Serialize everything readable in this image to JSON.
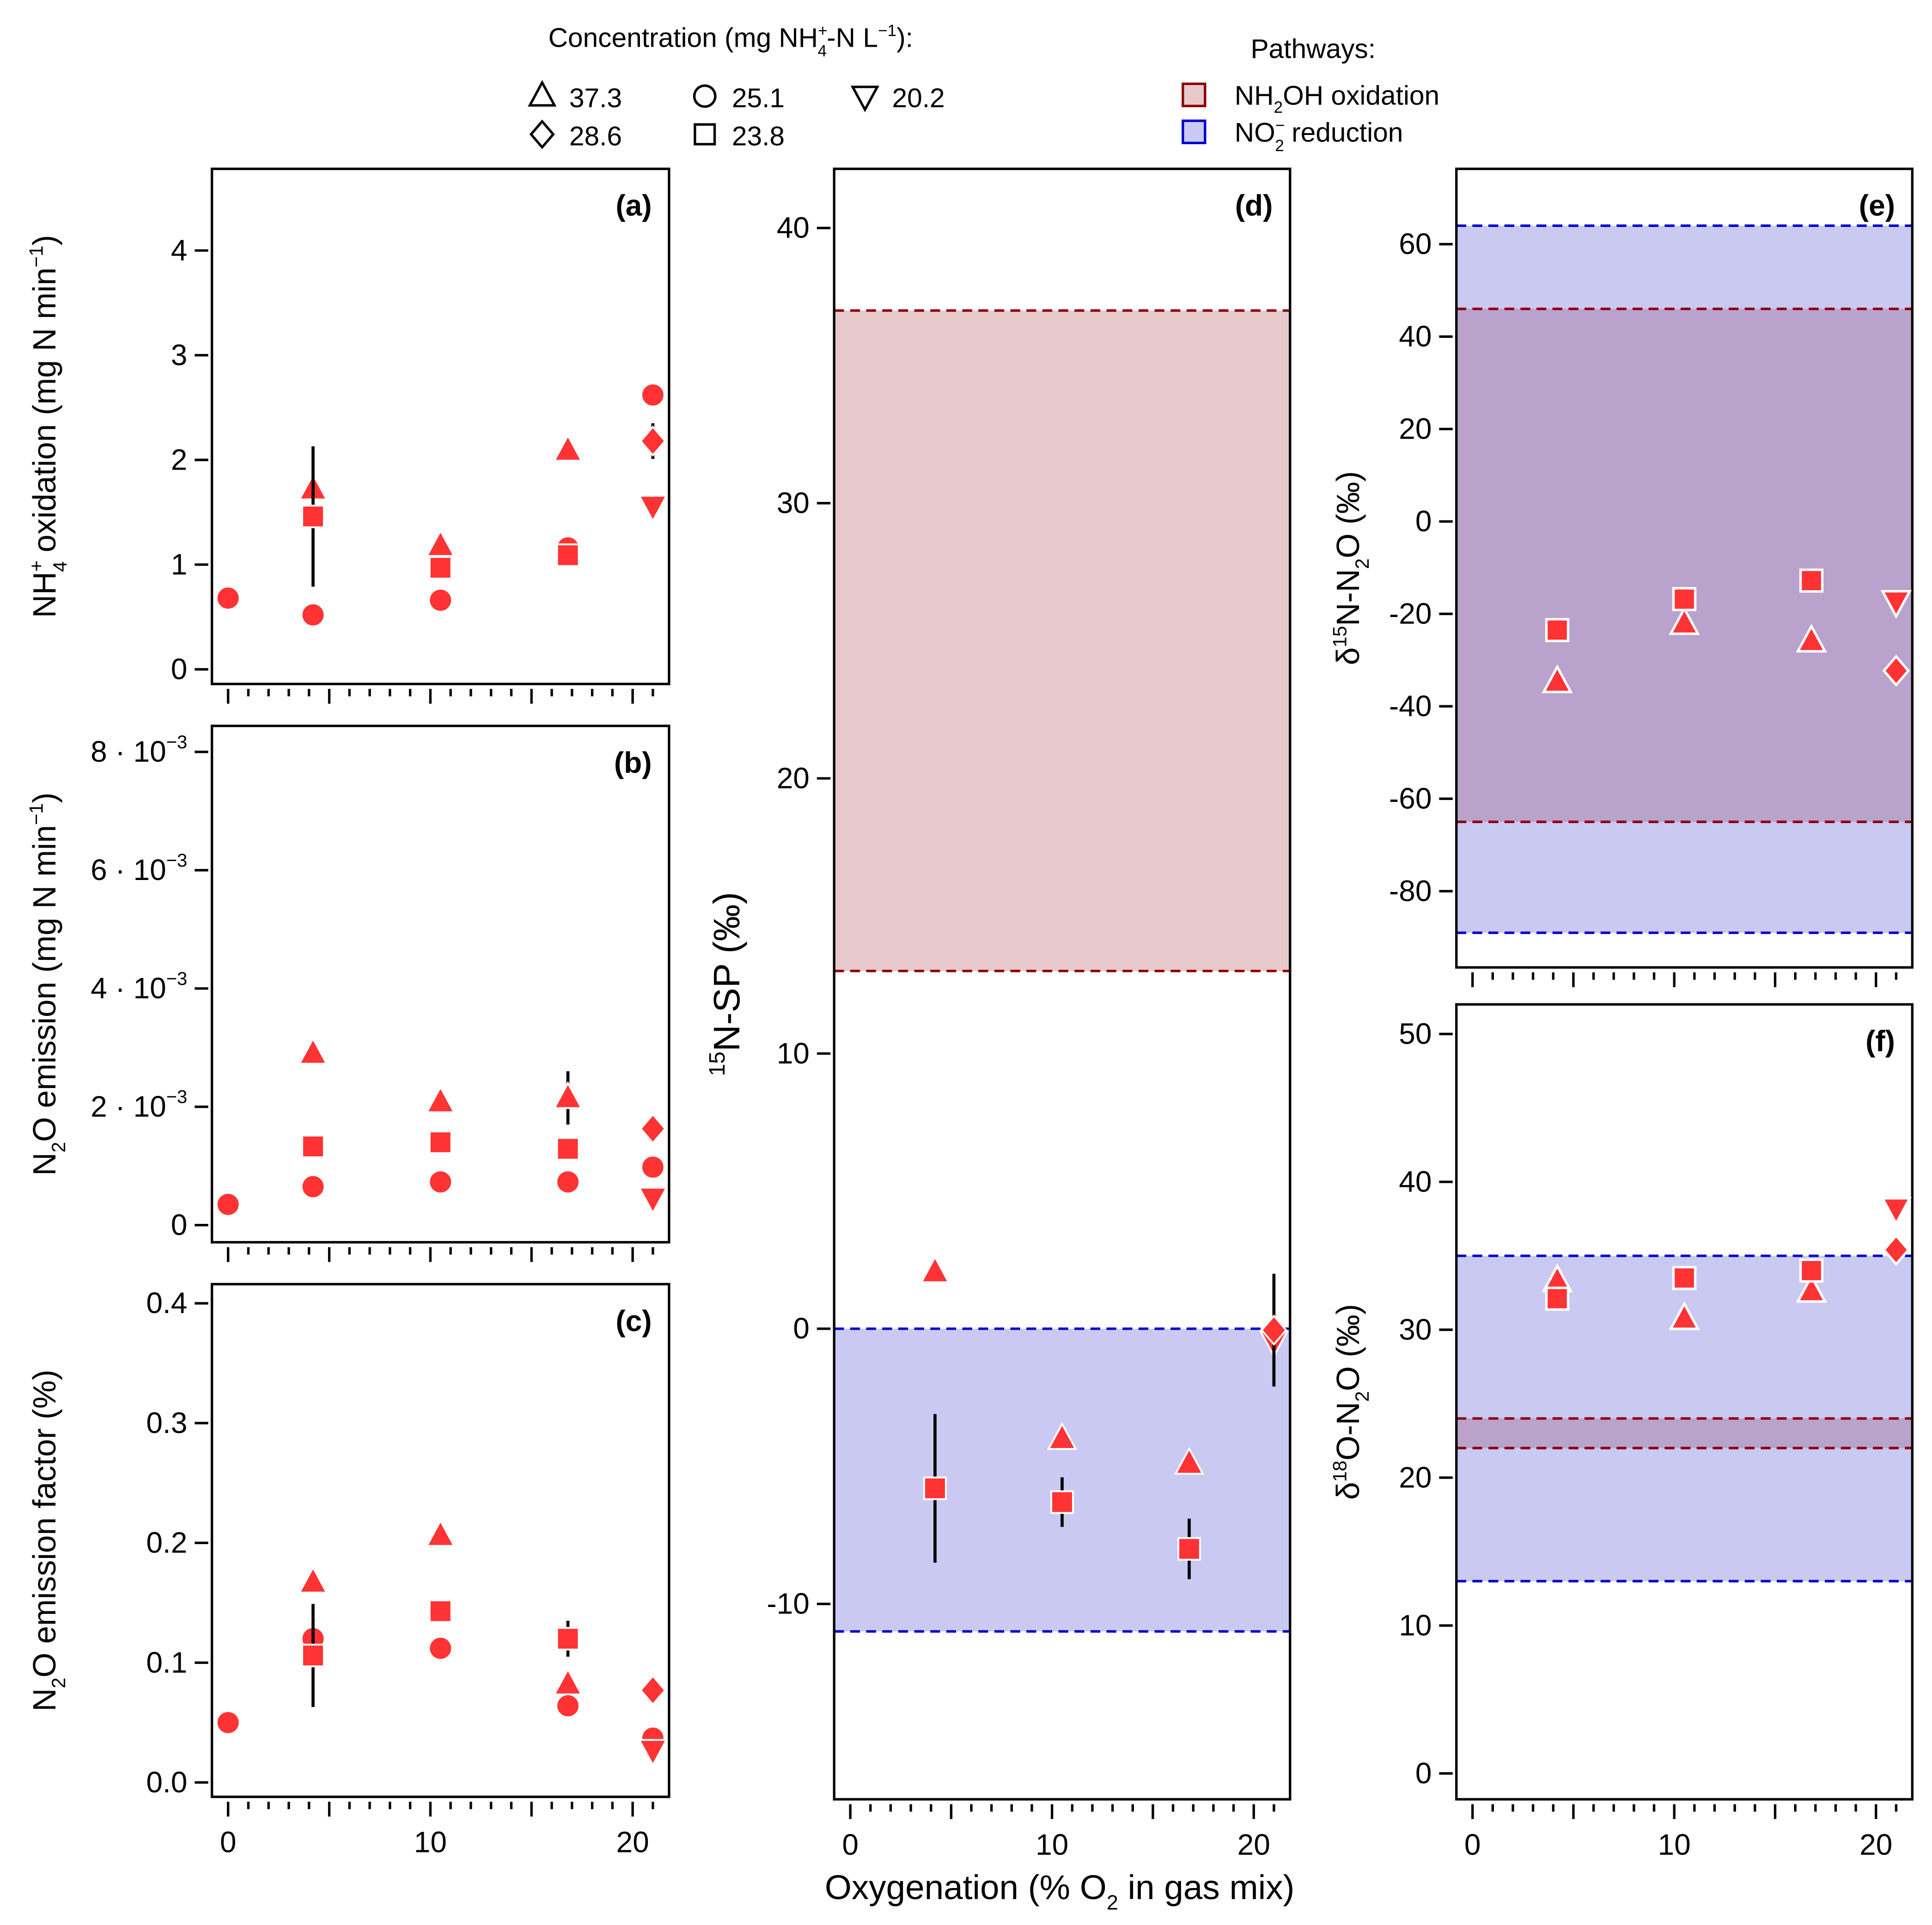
{
  "legend": {
    "concentration_title": [
      {
        "t": "Concentration (mg NH"
      },
      {
        "sub": "4",
        "sup": "+"
      },
      {
        "t": "-N L"
      },
      {
        "sup": "−1"
      },
      {
        "t": "):"
      }
    ],
    "concentration_items": [
      {
        "marker": "triangle",
        "label": "37.3"
      },
      {
        "marker": "circle",
        "label": "25.1"
      },
      {
        "marker": "triangle-down",
        "label": "20.2"
      },
      {
        "marker": "diamond",
        "label": "28.6"
      },
      {
        "marker": "square",
        "label": "23.8"
      }
    ],
    "pathways_title": "Pathways:",
    "pathway_items": [
      {
        "key": "nh2oh",
        "label": [
          {
            "t": "NH"
          },
          {
            "sub": "2"
          },
          {
            "t": "OH oxidation"
          }
        ],
        "fill": "#e8c9cb",
        "stroke": "#8b0000"
      },
      {
        "key": "no2",
        "label": [
          {
            "t": "NO"
          },
          {
            "sub": "2",
            "sup": "−"
          },
          {
            "t": " reduction"
          }
        ],
        "fill": "#c9c9f2",
        "stroke": "#0000cc"
      }
    ]
  },
  "colors": {
    "marker": "#ff3333",
    "overlap": "#b9a3cc"
  },
  "chart_data": {
    "type": "scatter",
    "xlabel": [
      {
        "t": "Oxygenation (% O"
      },
      {
        "sub": "2"
      },
      {
        "t": " in gas mix)"
      }
    ],
    "xlim": [
      -0.8,
      21.8
    ],
    "xticks": [
      0,
      10,
      20
    ],
    "series_keys": [
      "37.3",
      "25.1",
      "20.2",
      "28.6",
      "23.8"
    ],
    "panels": [
      {
        "id": "a",
        "label": "(a)",
        "xticklabels": false,
        "ylabel": [
          {
            "t": "NH"
          },
          {
            "sub": "4",
            "sup": "+"
          },
          {
            "t": " oxidation (mg N min"
          },
          {
            "sup": "−1"
          },
          {
            "t": ")"
          }
        ],
        "ylim": [
          -0.14,
          4.78
        ],
        "yticks": [
          {
            "v": 0,
            "t": "0"
          },
          {
            "v": 1,
            "t": "1"
          },
          {
            "v": 2,
            "t": "2"
          },
          {
            "v": 3,
            "t": "3"
          },
          {
            "v": 4,
            "t": "4"
          }
        ],
        "bands": [],
        "points": {
          "37.3": [
            [
              4.2,
              1.72
            ],
            [
              10.5,
              1.18
            ],
            [
              16.8,
              2.09
            ]
          ],
          "25.1": [
            [
              0,
              0.68
            ],
            [
              4.2,
              0.52
            ],
            [
              10.5,
              0.66
            ],
            [
              16.8,
              1.16
            ],
            [
              21,
              2.62
            ]
          ],
          "20.2": [
            [
              21,
              1.56
            ]
          ],
          "28.6": [
            [
              21,
              2.18,
              0.17
            ]
          ],
          "23.8": [
            [
              4.2,
              1.46,
              0.67
            ],
            [
              10.5,
              0.97
            ],
            [
              16.8,
              1.09
            ]
          ]
        }
      },
      {
        "id": "b",
        "label": "(b)",
        "xticklabels": false,
        "ylabel": [
          {
            "t": "N"
          },
          {
            "sub": "2"
          },
          {
            "t": "O emission (mg N min"
          },
          {
            "sup": "−1"
          },
          {
            "t": ")"
          }
        ],
        "ylim": [
          -0.00029,
          0.00844
        ],
        "yticks": [
          {
            "v": 0,
            "t": "0"
          },
          {
            "v": 0.002,
            "t": "2 · 10",
            "e": "−3"
          },
          {
            "v": 0.004,
            "t": "4 · 10",
            "e": "−3"
          },
          {
            "v": 0.006,
            "t": "6 · 10",
            "e": "−3"
          },
          {
            "v": 0.008,
            "t": "8 · 10",
            "e": "−3"
          }
        ],
        "bands": [],
        "points": {
          "37.3": [
            [
              4.2,
              0.0029
            ],
            [
              10.5,
              0.00208
            ],
            [
              16.8,
              0.00215,
              0.00045
            ]
          ],
          "25.1": [
            [
              0,
              0.00035
            ],
            [
              4.2,
              0.00065
            ],
            [
              10.5,
              0.00073
            ],
            [
              16.8,
              0.00073
            ],
            [
              21,
              0.00098
            ]
          ],
          "20.2": [
            [
              21,
              0.00046
            ]
          ],
          "28.6": [
            [
              21,
              0.00163
            ]
          ],
          "23.8": [
            [
              4.2,
              0.00133
            ],
            [
              10.5,
              0.0014
            ],
            [
              16.8,
              0.00129
            ]
          ]
        }
      },
      {
        "id": "c",
        "label": "(c)",
        "xticklabels": true,
        "ylabel": [
          {
            "t": "N"
          },
          {
            "sub": "2"
          },
          {
            "t": "O emission factor (%)"
          }
        ],
        "ylim": [
          -0.012,
          0.416
        ],
        "yticks": [
          {
            "v": 0,
            "t": "0.0"
          },
          {
            "v": 0.1,
            "t": "0.1"
          },
          {
            "v": 0.2,
            "t": "0.2"
          },
          {
            "v": 0.3,
            "t": "0.3"
          },
          {
            "v": 0.4,
            "t": "0.4"
          }
        ],
        "bands": [],
        "points": {
          "37.3": [
            [
              4.2,
              0.167
            ],
            [
              10.5,
              0.206
            ],
            [
              16.8,
              0.082
            ]
          ],
          "25.1": [
            [
              0,
              0.05
            ],
            [
              4.2,
              0.12
            ],
            [
              10.5,
              0.112
            ],
            [
              16.8,
              0.064
            ],
            [
              21,
              0.037
            ]
          ],
          "20.2": [
            [
              21,
              0.027
            ]
          ],
          "28.6": [
            [
              21,
              0.077
            ]
          ],
          "23.8": [
            [
              4.2,
              0.106,
              0.043
            ],
            [
              10.5,
              0.143
            ],
            [
              16.8,
              0.12,
              0.015
            ]
          ]
        }
      },
      {
        "id": "d",
        "label": "(d)",
        "xticklabels": true,
        "ylabel": [
          {
            "sup": "15"
          },
          {
            "t": "N-SP (‰)"
          }
        ],
        "ylim": [
          -17.1,
          42.15
        ],
        "yticks": [
          {
            "v": -10,
            "t": "-10"
          },
          {
            "v": 0,
            "t": "0"
          },
          {
            "v": 10,
            "t": "10"
          },
          {
            "v": 20,
            "t": "20"
          },
          {
            "v": 30,
            "t": "30"
          },
          {
            "v": 40,
            "t": "40"
          }
        ],
        "bands": [
          {
            "key": "nh2oh",
            "range": [
              13,
              37
            ]
          },
          {
            "key": "no2",
            "range": [
              -11,
              0
            ]
          }
        ],
        "points": {
          "37.3": [
            [
              4.2,
              2.06
            ],
            [
              10.5,
              -4.0
            ],
            [
              16.8,
              -4.9
            ]
          ],
          "25.1": [],
          "20.2": [
            [
              21,
              -0.45
            ]
          ],
          "28.6": [
            [
              21,
              -0.05,
              2.05
            ]
          ],
          "23.8": [
            [
              4.2,
              -5.8,
              2.7
            ],
            [
              10.5,
              -6.3,
              0.9
            ],
            [
              16.8,
              -8.0,
              1.1
            ]
          ]
        }
      },
      {
        "id": "e",
        "label": "(e)",
        "xticklabels": false,
        "white_edge": true,
        "ylabel": [
          {
            "t": "δ"
          },
          {
            "sup": "15"
          },
          {
            "t": "N-N"
          },
          {
            "sub": "2"
          },
          {
            "t": "O (‰)"
          }
        ],
        "ylim": [
          -96.5,
          76.3
        ],
        "yticks": [
          {
            "v": -80,
            "t": "-80"
          },
          {
            "v": -60,
            "t": "-60"
          },
          {
            "v": -40,
            "t": "-40"
          },
          {
            "v": -20,
            "t": "-20"
          },
          {
            "v": 0,
            "t": "0"
          },
          {
            "v": 20,
            "t": "20"
          },
          {
            "v": 40,
            "t": "40"
          },
          {
            "v": 60,
            "t": "60"
          }
        ],
        "bands": [
          {
            "key": "no2",
            "range": [
              -89,
              64
            ]
          },
          {
            "key": "nh2oh",
            "range": [
              -65,
              46
            ],
            "overlap": true
          }
        ],
        "points": {
          "37.3": [
            [
              4.2,
              -34.7
            ],
            [
              10.5,
              -22.1
            ],
            [
              16.8,
              -25.9
            ]
          ],
          "25.1": [],
          "20.2": [
            [
              21,
              -17.3
            ]
          ],
          "28.6": [
            [
              21,
              -32.3
            ]
          ],
          "23.8": [
            [
              4.2,
              -23.5
            ],
            [
              10.5,
              -16.8
            ],
            [
              16.8,
              -12.8
            ]
          ]
        }
      },
      {
        "id": "f",
        "label": "(f)",
        "xticklabels": true,
        "white_edge": true,
        "ylabel": [
          {
            "t": "δ"
          },
          {
            "sup": "18"
          },
          {
            "t": "O-N"
          },
          {
            "sub": "2"
          },
          {
            "t": "O (‰)"
          }
        ],
        "ylim": [
          -1.75,
          52
        ],
        "yticks": [
          {
            "v": 0,
            "t": "0"
          },
          {
            "v": 10,
            "t": "10"
          },
          {
            "v": 20,
            "t": "20"
          },
          {
            "v": 30,
            "t": "30"
          },
          {
            "v": 40,
            "t": "40"
          },
          {
            "v": 50,
            "t": "50"
          }
        ],
        "bands": [
          {
            "key": "no2",
            "range": [
              13,
              35
            ]
          },
          {
            "key": "nh2oh",
            "range": [
              22,
              24
            ],
            "overlap": true
          }
        ],
        "points": {
          "37.3": [
            [
              4.2,
              33.3
            ],
            [
              10.5,
              30.75
            ],
            [
              16.8,
              32.6
            ]
          ],
          "25.1": [],
          "20.2": [
            [
              21,
              38.2,
              0.7
            ]
          ],
          "28.6": [
            [
              21,
              35.4
            ]
          ],
          "23.8": [
            [
              4.2,
              32.1
            ],
            [
              10.5,
              33.5
            ],
            [
              16.8,
              34.0
            ]
          ]
        }
      }
    ]
  }
}
